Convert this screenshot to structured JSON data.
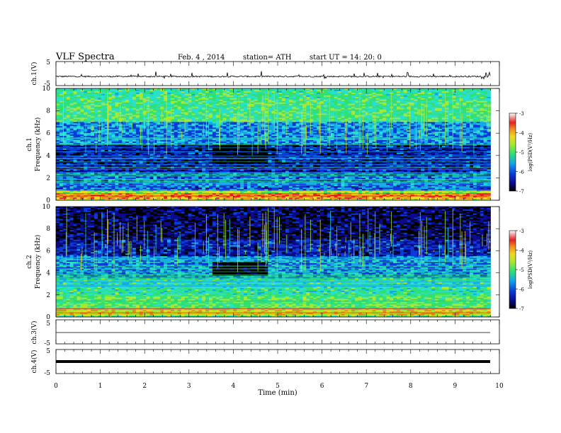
{
  "header": {
    "title": "VLF Spectra",
    "date": "Feb. 4 , 2014",
    "station": "station= ATH",
    "start": "start UT = 14: 20: 0"
  },
  "colors": {
    "background": "#ffffff",
    "axes": "#000000",
    "colormap": [
      "#000000",
      "#0a0a8a",
      "#0a3ad8",
      "#12a8e8",
      "#28e0d0",
      "#30e070",
      "#a8e830",
      "#f0d820",
      "#f08820",
      "#e82020",
      "#f0a0a0",
      "#ffffff"
    ]
  },
  "chart_data": [
    {
      "type": "line",
      "title": "",
      "ylabel": "ch.1(V)",
      "ylim": [
        -5,
        5
      ],
      "yticks": [
        "5",
        "-5"
      ],
      "x_range_min": [
        0,
        9.8
      ],
      "baseline_level_v": -1.2,
      "noise": "strong impulsive spikes"
    },
    {
      "type": "heatmap",
      "ylabel": "ch.1\nFrequency (kHz)",
      "ylim": [
        0,
        10
      ],
      "yticks": [
        "0",
        "2",
        "4",
        "6",
        "8",
        "10"
      ],
      "x_range_min": [
        0,
        9.8
      ],
      "colorbar": {
        "label": "log(PSD(V²/Hz)",
        "range": [
          -7,
          -3
        ],
        "ticks": [
          "-3",
          "-4",
          "-5",
          "-6",
          "-7"
        ]
      },
      "features": {
        "strong_low_band_khz": [
          0.1,
          0.8
        ],
        "quiet_window_min": [
          3.45,
          4.75
        ],
        "quiet_window_khz": [
          3.3,
          5.0
        ]
      }
    },
    {
      "type": "heatmap",
      "ylabel": "ch.2\nFrequency (kHz)",
      "ylim": [
        0,
        10
      ],
      "yticks": [
        "0",
        "2",
        "4",
        "6",
        "8",
        "10"
      ],
      "x_range_min": [
        0,
        9.8
      ],
      "colorbar": {
        "label": "log(PSD(V²/Hz)",
        "range": [
          -7,
          -3
        ],
        "ticks": [
          "-3",
          "-4",
          "-5",
          "-6",
          "-7"
        ]
      },
      "features": {
        "strong_low_band_khz": [
          0.1,
          3.5
        ],
        "quiet_window_min": [
          3.45,
          4.75
        ],
        "quiet_window_khz": [
          3.8,
          5.0
        ]
      }
    },
    {
      "type": "line",
      "ylabel": "ch.3(V)",
      "ylim": [
        -5,
        5
      ],
      "yticks": [
        "5",
        "-5"
      ],
      "x_range_min": [
        0,
        9.8
      ],
      "baseline_level_v": -0.6,
      "noise": "thin flat trace"
    },
    {
      "type": "line",
      "ylabel": "ch.4(V)",
      "ylim": [
        -5,
        5
      ],
      "yticks": [
        "5",
        "-5"
      ],
      "x_range_min": [
        0,
        9.8
      ],
      "baseline_level_v": -0.5,
      "noise": "thick flat trace"
    }
  ],
  "xaxis": {
    "label": "Time (min)",
    "xlim": [
      0,
      10
    ],
    "ticks": [
      "0",
      "1",
      "2",
      "3",
      "4",
      "5",
      "6",
      "7",
      "8",
      "9",
      "10"
    ]
  }
}
